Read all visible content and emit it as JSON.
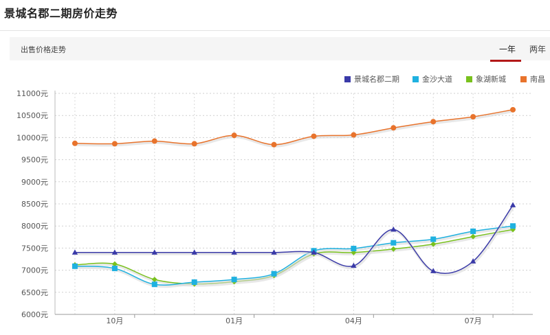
{
  "page": {
    "title": "景城名郡二期房价走势",
    "subtitle": "出售价格走势",
    "tabs": [
      {
        "label": "一年",
        "active": true
      },
      {
        "label": "两年",
        "active": false
      }
    ]
  },
  "chart_data": {
    "type": "line",
    "title": "",
    "xlabel": "",
    "ylabel": "",
    "ylim": [
      6000,
      11000
    ],
    "y_ticks": [
      6000,
      6500,
      7000,
      7500,
      8000,
      8500,
      9000,
      9500,
      10000,
      10500,
      11000
    ],
    "y_tick_suffix": "元",
    "x_count": 12,
    "x_tick_labels": [
      {
        "index": 1,
        "label": "10月"
      },
      {
        "index": 4,
        "label": "01月"
      },
      {
        "index": 7,
        "label": "04月"
      },
      {
        "index": 10,
        "label": "07月"
      }
    ],
    "grid": true,
    "legend_position": "top-right",
    "series": [
      {
        "name": "景城名郡二期",
        "color": "#3a3aa8",
        "marker": "triangle",
        "values": [
          7400,
          7400,
          7400,
          7400,
          7400,
          7400,
          7400,
          7100,
          7920,
          6980,
          7200,
          8470
        ]
      },
      {
        "name": "金沙大道",
        "color": "#1fb1e0",
        "marker": "square",
        "values": [
          7090,
          7040,
          6680,
          6730,
          6790,
          6920,
          7440,
          7490,
          7620,
          7700,
          7880,
          8000
        ]
      },
      {
        "name": "象湖新城",
        "color": "#79c11d",
        "marker": "diamond",
        "values": [
          7120,
          7140,
          6790,
          6690,
          6740,
          6880,
          7370,
          7400,
          7480,
          7590,
          7760,
          7920
        ]
      },
      {
        "name": "南昌",
        "color": "#e8732c",
        "marker": "circle",
        "values": [
          9870,
          9860,
          9920,
          9860,
          10050,
          9840,
          10030,
          10060,
          10220,
          10360,
          10470,
          10630
        ]
      }
    ]
  }
}
